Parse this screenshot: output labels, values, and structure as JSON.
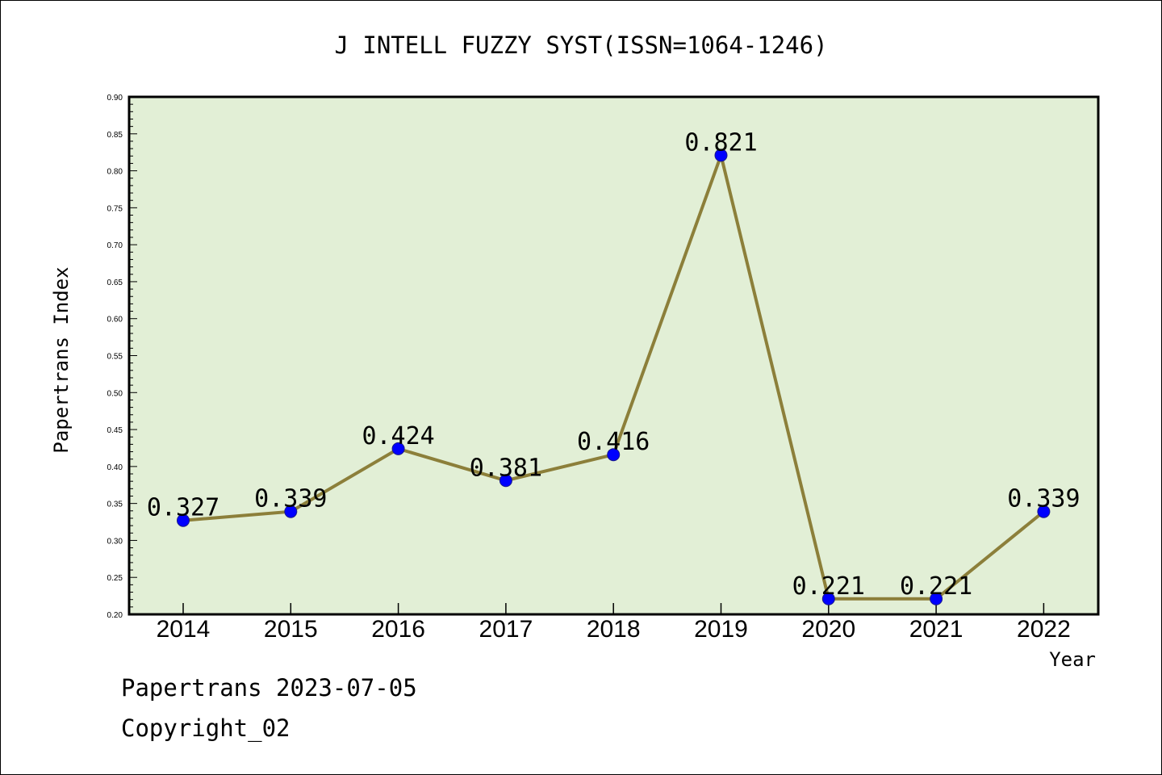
{
  "colors": {
    "plot_background": "#e2efd6",
    "line": "#8c7f3a",
    "marker": "#0000ff",
    "axis": "#000000"
  },
  "footer": {
    "date_line": "Papertrans 2023-07-05",
    "copyright": "Copyright_02"
  },
  "chart_data": {
    "type": "line",
    "title": "J INTELL FUZZY SYST(ISSN=1064-1246)",
    "xlabel": "Year",
    "ylabel": "Papertrans Index",
    "categories": [
      "2014",
      "2015",
      "2016",
      "2017",
      "2018",
      "2019",
      "2020",
      "2021",
      "2022"
    ],
    "series": [
      {
        "values": [
          0.327,
          0.339,
          0.424,
          0.381,
          0.416,
          0.821,
          0.221,
          0.221,
          0.339
        ]
      }
    ],
    "data_labels": [
      "0.327",
      "0.339",
      "0.424",
      "0.381",
      "0.416",
      "0.821",
      "0.221",
      "0.221",
      "0.339"
    ],
    "ylim": [
      0.2,
      0.9
    ],
    "yticks": [
      "0.20",
      "0.25",
      "0.30",
      "0.35",
      "0.40",
      "0.45",
      "0.50",
      "0.55",
      "0.60",
      "0.65",
      "0.70",
      "0.75",
      "0.80",
      "0.85",
      "0.90"
    ],
    "grid": false,
    "legend": "none"
  }
}
